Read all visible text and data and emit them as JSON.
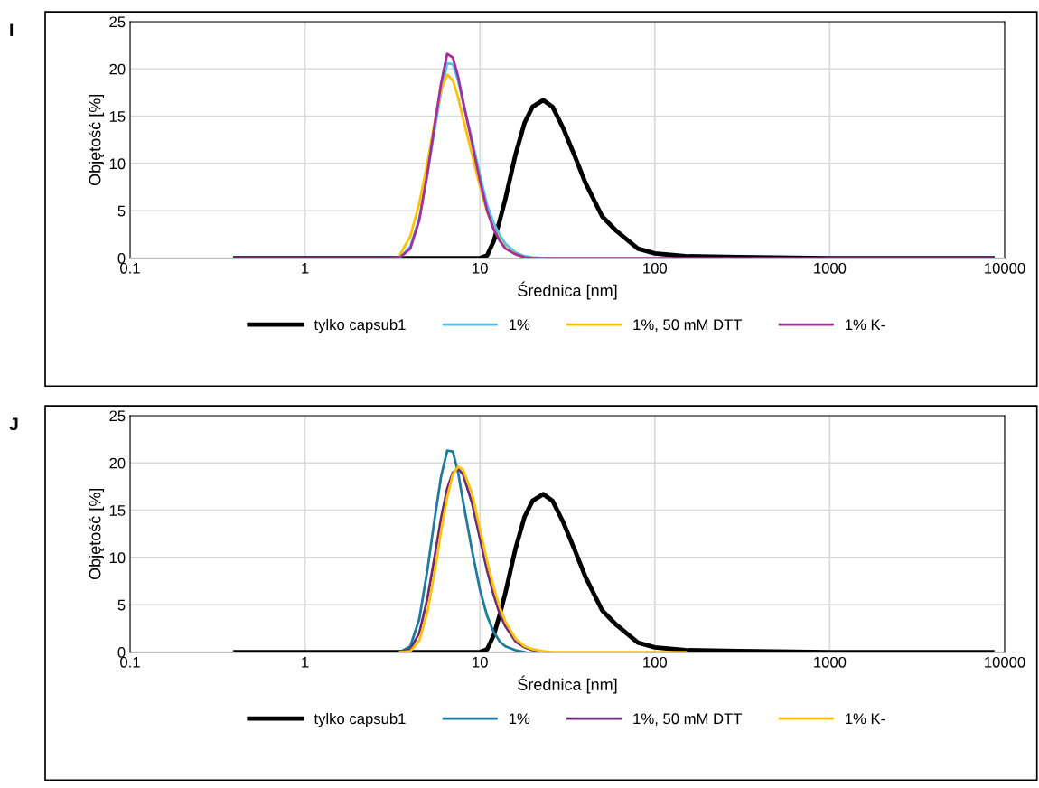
{
  "chart_data": [
    {
      "type": "line",
      "xlabel": "Średnica [nm]",
      "ylabel": "Objętość [%]",
      "annotations": [
        "I"
      ],
      "log": "x",
      "grid": true,
      "legend": "bottom",
      "marker": "none",
      "line_style": "solid",
      "xlim": [
        0.1,
        10000
      ],
      "xticks": [
        0.1,
        1,
        10,
        100,
        1000,
        10000
      ],
      "ylim": [
        0,
        25
      ],
      "yticks": [
        0,
        5,
        10,
        15,
        20,
        25
      ],
      "x": [
        0.4,
        3,
        3.5,
        4,
        4.5,
        5,
        5.5,
        6,
        6.5,
        7,
        7.5,
        8,
        9,
        10,
        11,
        12,
        13,
        14,
        16,
        18,
        20,
        23,
        26,
        30,
        35,
        40,
        50,
        60,
        80,
        100,
        150,
        300,
        1000,
        3000,
        8500
      ],
      "series": [
        {
          "name": "tylko capsub1",
          "color": "#000000",
          "values": [
            0,
            0,
            0,
            0,
            0,
            0,
            0,
            0,
            0,
            0,
            0,
            0,
            0,
            0,
            0.3,
            1.8,
            4.0,
            6.3,
            11.0,
            14.3,
            16.0,
            16.7,
            16.0,
            13.7,
            10.7,
            8.0,
            4.4,
            2.9,
            1.0,
            0.5,
            0.2,
            0.1,
            0,
            0,
            0
          ]
        },
        {
          "name": "1%",
          "color": "#4dc3ef",
          "values": [
            null,
            null,
            0.1,
            1.2,
            4.2,
            8.8,
            13.5,
            17.6,
            20.6,
            20.5,
            18.8,
            16.5,
            12.6,
            8.8,
            5.6,
            3.7,
            2.4,
            1.5,
            0.6,
            0.2,
            0.1,
            0,
            null,
            null,
            null,
            null,
            null,
            null,
            null,
            null,
            null,
            null,
            null,
            null,
            null
          ]
        },
        {
          "name": "1%, 50 mM DTT",
          "color": "#ffc000",
          "values": [
            null,
            null,
            0.4,
            2.3,
            5.8,
            10.0,
            14.3,
            17.8,
            19.4,
            18.8,
            17.0,
            14.8,
            11.0,
            7.6,
            4.9,
            3.1,
            1.9,
            1.1,
            0.4,
            0.1,
            0,
            null,
            null,
            null,
            null,
            null,
            null,
            null,
            null,
            null,
            null,
            null,
            null,
            null,
            null
          ]
        },
        {
          "name": "1% K-",
          "color": "#a0309a",
          "values": [
            0,
            0,
            0.1,
            1.0,
            4.0,
            8.9,
            14.0,
            18.5,
            21.6,
            21.2,
            19.2,
            16.6,
            12.2,
            8.2,
            5.0,
            3.0,
            1.8,
            1.0,
            0.4,
            0.1,
            0,
            0,
            0,
            0,
            0,
            0,
            0,
            0,
            0,
            0,
            0,
            0,
            0,
            0,
            0
          ]
        }
      ]
    },
    {
      "type": "line",
      "xlabel": "Średnica [nm]",
      "ylabel": "Objętość [%]",
      "annotations": [
        "J"
      ],
      "log": "x",
      "grid": true,
      "legend": "bottom",
      "marker": "none",
      "line_style": "solid",
      "xlim": [
        0.1,
        10000
      ],
      "xticks": [
        0.1,
        1,
        10,
        100,
        1000,
        10000
      ],
      "ylim": [
        0,
        25
      ],
      "yticks": [
        0,
        5,
        10,
        15,
        20,
        25
      ],
      "x": [
        0.4,
        3,
        3.5,
        4,
        4.5,
        5,
        5.5,
        6,
        6.5,
        7,
        7.5,
        8,
        9,
        10,
        11,
        12,
        13,
        14,
        16,
        18,
        20,
        23,
        26,
        30,
        35,
        40,
        50,
        60,
        80,
        100,
        150,
        300,
        1000,
        3000,
        8500
      ],
      "series": [
        {
          "name": "tylko capsub1",
          "color": "#000000",
          "values": [
            0,
            0,
            0,
            0,
            0,
            0,
            0,
            0,
            0,
            0,
            0,
            0,
            0,
            0,
            0.3,
            1.8,
            4.0,
            6.3,
            11.0,
            14.3,
            16.0,
            16.7,
            16.0,
            13.7,
            10.7,
            8.0,
            4.4,
            2.9,
            1.0,
            0.5,
            0.2,
            0.1,
            0,
            0,
            0
          ]
        },
        {
          "name": "1%",
          "color": "#1f7a9c",
          "values": [
            null,
            null,
            0,
            0.6,
            3.5,
            8.6,
            14.0,
            18.6,
            21.3,
            21.2,
            19.0,
            16.0,
            10.8,
            6.6,
            3.8,
            2.1,
            1.1,
            0.6,
            0.2,
            0,
            null,
            null,
            null,
            null,
            null,
            null,
            null,
            null,
            null,
            null,
            null,
            null,
            null,
            null,
            null
          ]
        },
        {
          "name": "1%, 50 mM DTT",
          "color": "#6a2a7a",
          "values": [
            null,
            null,
            0,
            0.3,
            2.0,
            5.6,
            10.0,
            14.2,
            17.3,
            19.0,
            19.4,
            18.8,
            15.8,
            12.0,
            8.6,
            6.0,
            4.0,
            2.7,
            1.1,
            0.5,
            0.2,
            0,
            null,
            null,
            null,
            null,
            null,
            null,
            null,
            null,
            null,
            null,
            null,
            null,
            null
          ]
        },
        {
          "name": "1% K-",
          "color": "#ffc000",
          "values": [
            null,
            null,
            0,
            0.1,
            1.2,
            4.2,
            8.4,
            12.8,
            16.4,
            18.8,
            19.6,
            19.3,
            16.8,
            13.0,
            9.6,
            6.8,
            4.7,
            3.2,
            1.4,
            0.6,
            0.3,
            0.1,
            0,
            0,
            0,
            0,
            0,
            0,
            0,
            0,
            0,
            null,
            null,
            null,
            null
          ]
        }
      ]
    }
  ]
}
